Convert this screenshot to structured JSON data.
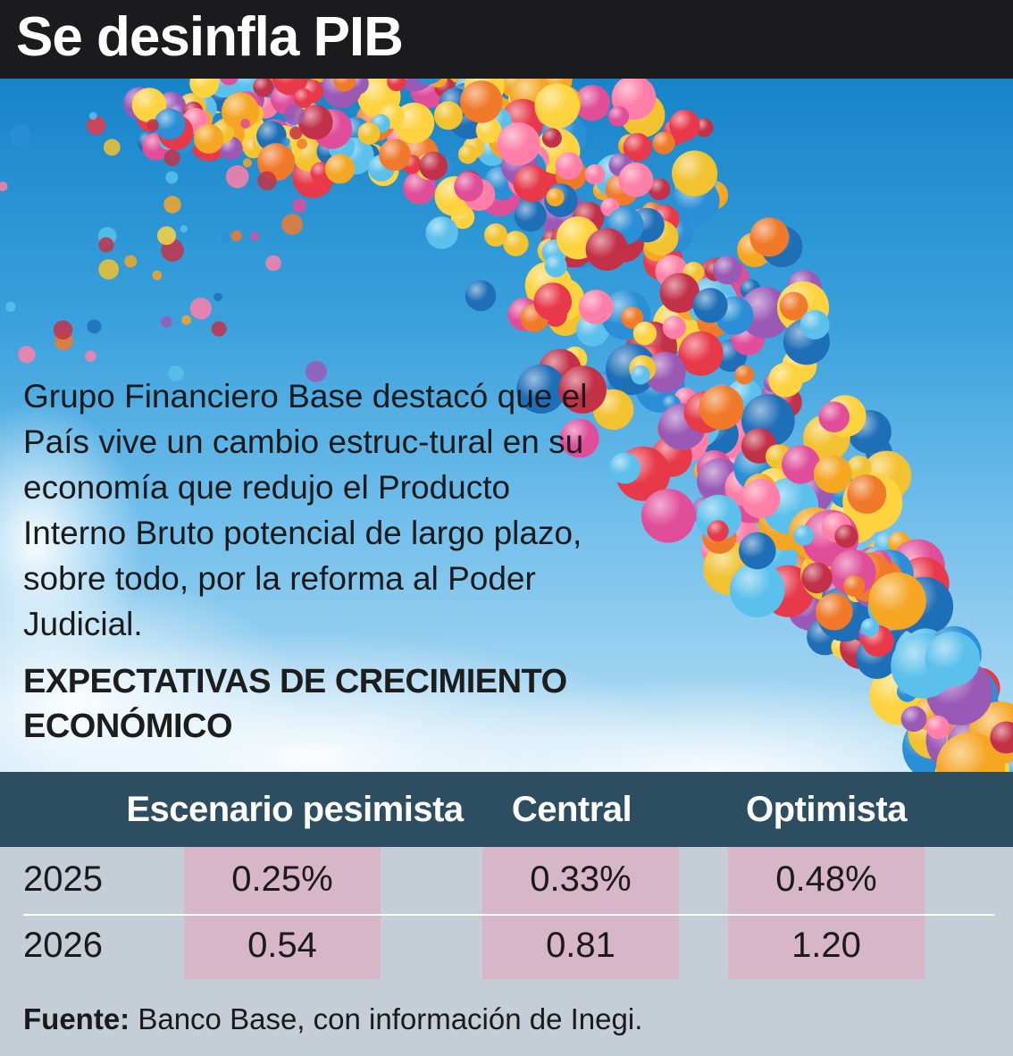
{
  "header": {
    "title": "Se desinfla PIB"
  },
  "intro": {
    "text": "Grupo Financiero Base destacó que el País vive un cambio estruc-tural en su economía que redujo el Producto Interno Bruto potencial de largo plazo, sobre todo, por la reforma al Poder Judicial."
  },
  "section": {
    "title": "EXPECTATIVAS DE CRECIMIENTO ECONÓMICO"
  },
  "table": {
    "headers": [
      "Escenario pesimista",
      "Central",
      "Optimista"
    ],
    "rows": [
      {
        "year": "2025",
        "values": [
          "0.25%",
          "0.33%",
          "0.48%"
        ]
      },
      {
        "year": "2026",
        "values": [
          "0.54",
          "0.81",
          "1.20"
        ]
      }
    ]
  },
  "source": {
    "label": "Fuente:",
    "text": "Banco Base, con información de Inegi."
  },
  "colors": {
    "title_bar": "#1b1b1d",
    "table_header": "#2c4e60",
    "table_body": "#c5cdd7",
    "highlight_cell": "#d7b6c8",
    "sky": "#3aa1dc"
  },
  "image": {
    "icon": "balloons-illustration"
  }
}
